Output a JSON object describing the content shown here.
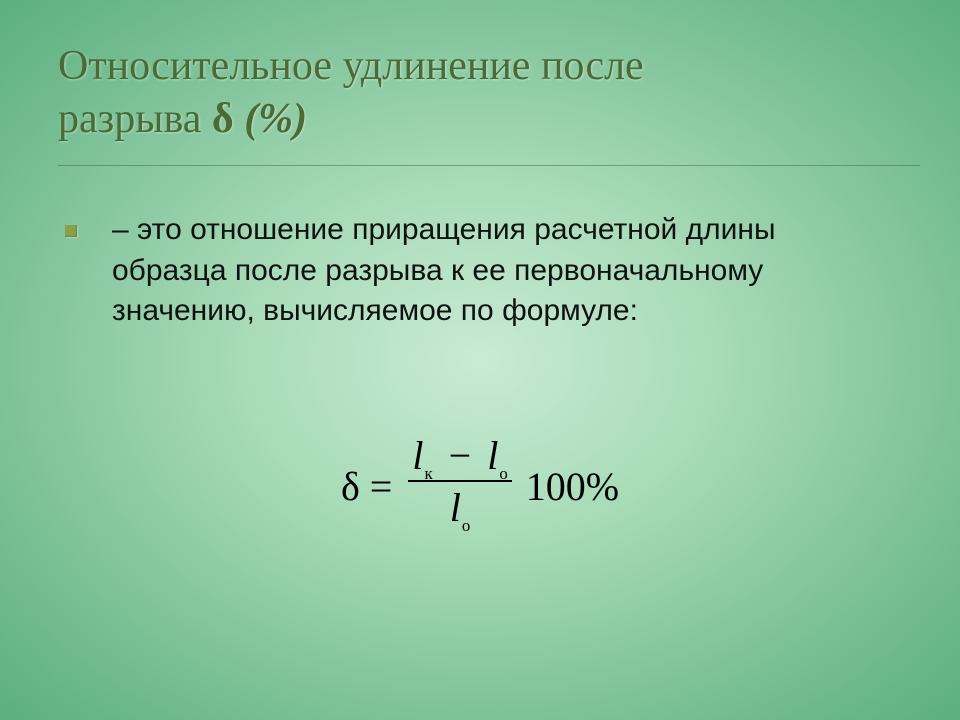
{
  "title": {
    "line1": "Относительное удлинение после",
    "line2_a": "разрыва ",
    "delta": "δ",
    "perc": " (%)"
  },
  "body": {
    "text": "– это отношение приращения расчетной длины образца после разрыва к ее первоначальному значению, вычисляемое по формуле:"
  },
  "formula": {
    "lhs_delta": "δ",
    "eq": "=",
    "var_l": "l",
    "sub_k": "к",
    "sub_o": "о",
    "minus": "−",
    "rhs": "100%"
  },
  "colors": {
    "title": "#4a6b35",
    "body": "#111111",
    "bullet": "#8aa04a"
  }
}
